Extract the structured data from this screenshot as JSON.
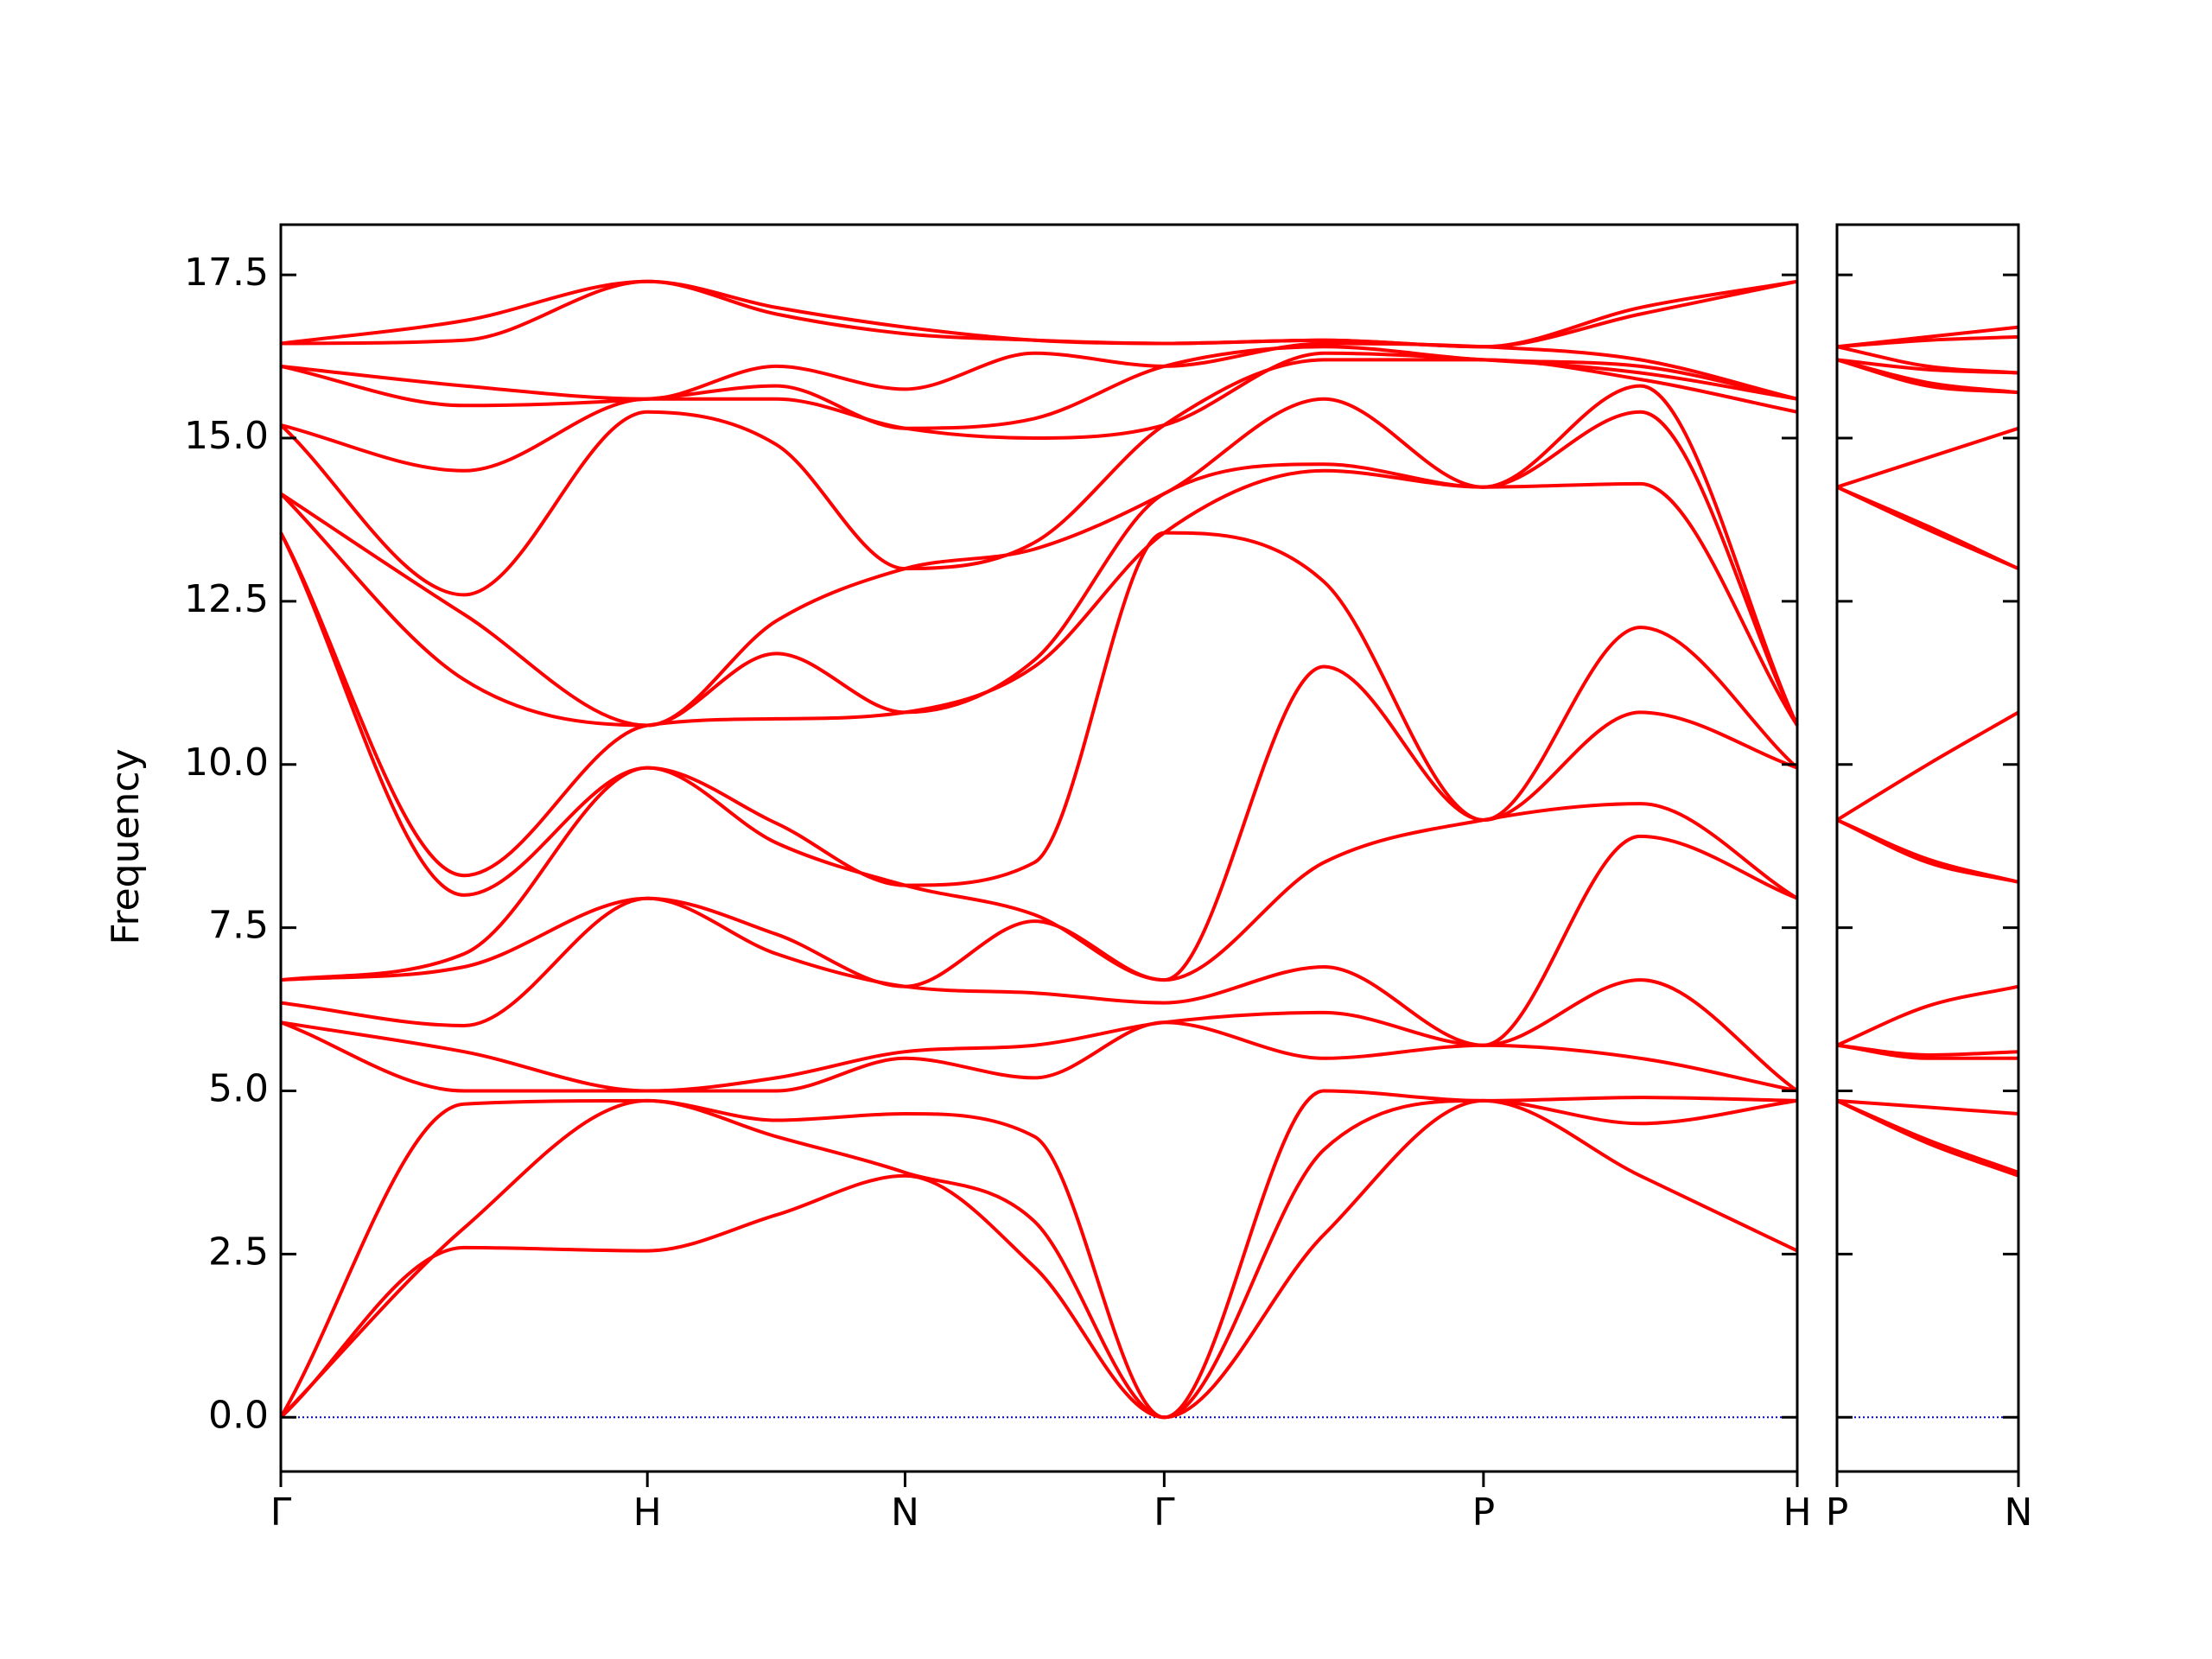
{
  "chart_data": {
    "type": "line",
    "ylabel": "Frequency",
    "color": "#ff0000",
    "hline": 0,
    "hline_color": "#0000cc",
    "ylim": [
      -0.83,
      18.27
    ],
    "yticks": [
      {
        "value": 0,
        "label": "0.0"
      },
      {
        "value": 2.5,
        "label": "2.5"
      },
      {
        "value": 5,
        "label": "5.0"
      },
      {
        "value": 7.5,
        "label": "7.5"
      },
      {
        "value": 10,
        "label": "10.0"
      },
      {
        "value": 12.5,
        "label": "12.5"
      },
      {
        "value": 15,
        "label": "15.0"
      },
      {
        "value": 17.5,
        "label": "17.5"
      }
    ],
    "panels": [
      {
        "xlim": [
          0,
          4.137
        ],
        "xticks": [
          {
            "value": 0,
            "label": "Γ"
          },
          {
            "value": 1,
            "label": "H"
          },
          {
            "value": 1.703,
            "label": "N"
          },
          {
            "value": 2.41,
            "label": "Γ"
          },
          {
            "value": 3.281,
            "label": "P"
          },
          {
            "value": 4.137,
            "label": "H"
          }
        ],
        "x": [
          0,
          0.5,
          1,
          1.352,
          1.703,
          2.056,
          2.41,
          2.846,
          3.281,
          3.709,
          4.137
        ],
        "bands": [
          [
            0,
            2.6,
            2.55,
            3.1,
            3.7,
            2.3,
            0,
            2.8,
            4.85,
            3.7,
            2.55
          ],
          [
            0,
            2.9,
            4.85,
            4.3,
            3.75,
            3.0,
            0,
            4.1,
            4.85,
            4.5,
            4.85
          ],
          [
            0,
            4.8,
            4.85,
            4.55,
            4.65,
            4.3,
            0,
            5.0,
            4.85,
            4.9,
            4.85
          ],
          [
            6.05,
            5.0,
            5.0,
            5.0,
            5.5,
            5.2,
            6.05,
            5.5,
            5.7,
            5.5,
            5.0
          ],
          [
            6.05,
            5.6,
            5.0,
            5.2,
            5.6,
            5.7,
            6.05,
            6.2,
            5.7,
            6.7,
            5.0
          ],
          [
            6.35,
            6.0,
            7.95,
            7.1,
            6.6,
            6.5,
            6.35,
            6.9,
            5.7,
            8.9,
            7.95
          ],
          [
            6.7,
            6.9,
            7.95,
            7.4,
            6.6,
            7.6,
            6.7,
            8.5,
            9.15,
            9.4,
            7.95
          ],
          [
            6.7,
            7.1,
            9.95,
            8.8,
            8.15,
            7.7,
            6.7,
            11.5,
            9.15,
            10.8,
            9.95
          ],
          [
            13.55,
            8.0,
            9.95,
            9.1,
            8.15,
            8.5,
            13.55,
            12.8,
            9.15,
            12.1,
            9.95
          ],
          [
            13.55,
            8.3,
            10.6,
            10.7,
            10.8,
            11.5,
            13.55,
            14.5,
            14.25,
            14.3,
            10.6
          ],
          [
            14.15,
            11.3,
            10.6,
            11.7,
            10.8,
            11.6,
            14.15,
            14.6,
            14.25,
            15.4,
            10.6
          ],
          [
            14.15,
            12.3,
            10.6,
            12.2,
            13.0,
            13.3,
            14.15,
            15.6,
            14.25,
            15.8,
            10.6
          ],
          [
            15.2,
            12.6,
            15.4,
            14.9,
            13.0,
            13.4,
            15.2,
            16.2,
            16.2,
            15.9,
            15.4
          ],
          [
            15.2,
            14.5,
            15.6,
            15.6,
            15.15,
            15.0,
            15.2,
            16.3,
            16.2,
            16.0,
            15.6
          ],
          [
            16.1,
            15.5,
            15.6,
            15.8,
            15.15,
            15.3,
            16.1,
            16.4,
            16.2,
            16.1,
            15.6
          ],
          [
            16.1,
            15.8,
            15.6,
            16.1,
            15.75,
            16.3,
            16.1,
            16.45,
            16.4,
            16.2,
            15.6
          ],
          [
            16.45,
            16.5,
            17.4,
            16.9,
            16.6,
            16.5,
            16.45,
            16.5,
            16.4,
            16.9,
            17.4
          ],
          [
            16.45,
            16.8,
            17.4,
            17.0,
            16.7,
            16.5,
            16.45,
            16.5,
            16.4,
            17.0,
            17.4
          ]
        ]
      },
      {
        "xlim": [
          0,
          0.496
        ],
        "xticks": [
          {
            "value": 0,
            "label": "P"
          },
          {
            "value": 0.496,
            "label": "N"
          }
        ],
        "x": [
          0,
          0.248,
          0.496
        ],
        "bands": [
          [
            4.85,
            4.2,
            3.7
          ],
          [
            4.85,
            4.25,
            3.75
          ],
          [
            4.85,
            4.75,
            4.65
          ],
          [
            5.7,
            5.5,
            5.5
          ],
          [
            5.7,
            5.55,
            5.6
          ],
          [
            5.7,
            6.3,
            6.6
          ],
          [
            9.15,
            8.5,
            8.2
          ],
          [
            9.15,
            8.55,
            8.2
          ],
          [
            9.15,
            10.0,
            10.8
          ],
          [
            14.25,
            13.6,
            13.0
          ],
          [
            14.25,
            13.65,
            13.0
          ],
          [
            14.25,
            14.7,
            15.15
          ],
          [
            16.2,
            15.8,
            15.7
          ],
          [
            16.2,
            15.85,
            15.7
          ],
          [
            16.2,
            16.05,
            16.0
          ],
          [
            16.4,
            16.1,
            16.0
          ],
          [
            16.4,
            16.5,
            16.55
          ],
          [
            16.4,
            16.55,
            16.7
          ]
        ]
      }
    ]
  }
}
